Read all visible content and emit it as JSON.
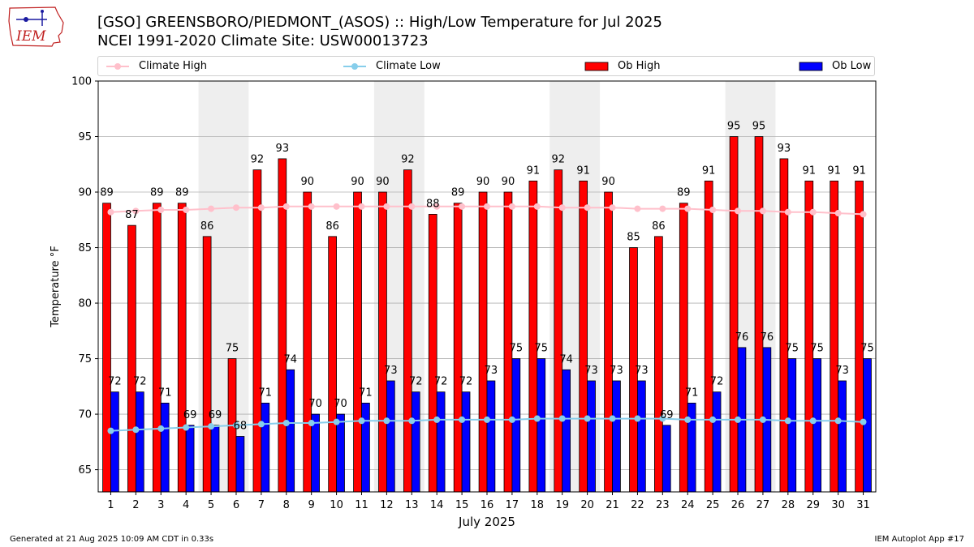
{
  "header": {
    "title_line1": "[GSO] GREENSBORO/PIEDMONT_(ASOS) :: High/Low Temperature for Jul 2025",
    "title_line2": "NCEI 1991-2020 Climate Site: USW00013723",
    "logo_text": "IEM"
  },
  "footer": {
    "generated": "Generated at 21 Aug 2025 10:09 AM CDT in 0.33s",
    "app": "IEM Autoplot App #17"
  },
  "colors": {
    "ob_high": "#ff0000",
    "ob_low": "#0000ff",
    "climate_high": "#ffc0cb",
    "climate_low": "#87ceeb",
    "weekend_shade": "#eeeeee",
    "grid": "#b0b0b0"
  },
  "chart_data": {
    "type": "bar",
    "xlabel": "July 2025",
    "ylabel": "Temperature °F",
    "ylim": [
      63,
      100
    ],
    "yticks": [
      65,
      70,
      75,
      80,
      85,
      90,
      95,
      100
    ],
    "grid": "horizontal",
    "legend_placement": "top",
    "categories": [
      "1",
      "2",
      "3",
      "4",
      "5",
      "6",
      "7",
      "8",
      "9",
      "10",
      "11",
      "12",
      "13",
      "14",
      "15",
      "16",
      "17",
      "18",
      "19",
      "20",
      "21",
      "22",
      "23",
      "24",
      "25",
      "26",
      "27",
      "28",
      "29",
      "30",
      "31"
    ],
    "shaded_days": [
      [
        5,
        6
      ],
      [
        12,
        13
      ],
      [
        19,
        20
      ],
      [
        26,
        27
      ]
    ],
    "series": [
      {
        "name": "Climate High",
        "kind": "line",
        "values": [
          88.2,
          88.3,
          88.4,
          88.4,
          88.5,
          88.6,
          88.6,
          88.7,
          88.7,
          88.7,
          88.7,
          88.7,
          88.7,
          88.7,
          88.7,
          88.7,
          88.7,
          88.7,
          88.6,
          88.6,
          88.6,
          88.5,
          88.5,
          88.5,
          88.4,
          88.3,
          88.3,
          88.2,
          88.2,
          88.1,
          88.0
        ]
      },
      {
        "name": "Climate Low",
        "kind": "line",
        "values": [
          68.5,
          68.6,
          68.7,
          68.8,
          68.9,
          69.0,
          69.1,
          69.2,
          69.2,
          69.3,
          69.4,
          69.4,
          69.4,
          69.5,
          69.5,
          69.5,
          69.5,
          69.6,
          69.6,
          69.6,
          69.6,
          69.6,
          69.6,
          69.5,
          69.5,
          69.5,
          69.5,
          69.4,
          69.4,
          69.4,
          69.3
        ]
      },
      {
        "name": "Ob High",
        "kind": "bar",
        "values": [
          89,
          87,
          89,
          89,
          86,
          75,
          92,
          93,
          90,
          86,
          90,
          90,
          92,
          88,
          89,
          90,
          90,
          91,
          92,
          91,
          90,
          85,
          86,
          89,
          91,
          95,
          95,
          93,
          91,
          91,
          91
        ]
      },
      {
        "name": "Ob Low",
        "kind": "bar",
        "values": [
          72,
          72,
          71,
          69,
          69,
          68,
          71,
          74,
          70,
          70,
          71,
          73,
          72,
          72,
          72,
          73,
          75,
          75,
          74,
          73,
          73,
          73,
          69,
          71,
          72,
          76,
          76,
          75,
          75,
          73,
          75
        ]
      }
    ]
  }
}
